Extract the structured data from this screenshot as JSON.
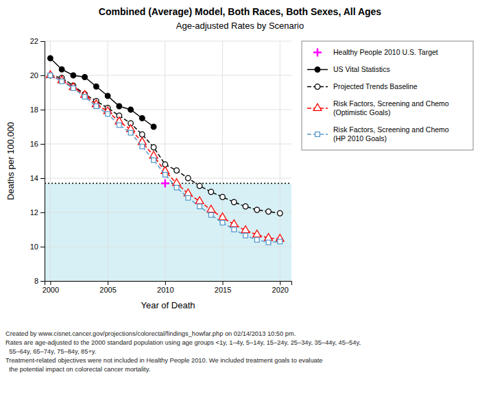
{
  "chart_data": {
    "type": "line",
    "title": "Combined (Average) Model, Both Races, Both Sexes, All Ages",
    "subtitle": "Age-adjusted Rates by Scenario",
    "x_label": "Year of Death",
    "y_label": "Deaths per 100,000",
    "xlim": [
      1999.5,
      2021
    ],
    "ylim": [
      8,
      22
    ],
    "xticks": [
      2000,
      2005,
      2010,
      2015,
      2020
    ],
    "yticks": [
      8,
      10,
      12,
      14,
      16,
      18,
      20,
      22
    ],
    "grid": true,
    "legend": "right",
    "series": [
      {
        "name": "Healthy People 2010 U.S. Target",
        "type": "target",
        "color": "#ff00ff",
        "marker": "plus",
        "line_style": "dotted",
        "x": [
          2010
        ],
        "values": [
          13.7
        ]
      },
      {
        "name": "US Vital Statistics",
        "type": "line",
        "color": "#000000",
        "marker": "circle",
        "line_style": "solid",
        "x": [
          2000,
          2001,
          2002,
          2003,
          2004,
          2005,
          2006,
          2007,
          2008,
          2009
        ],
        "values": [
          21.0,
          20.35,
          20.0,
          19.9,
          19.35,
          18.8,
          18.2,
          18.0,
          17.5,
          17.0
        ]
      },
      {
        "name": "Projected Trends Baseline",
        "type": "line",
        "color": "#000000",
        "marker": "circle-open",
        "line_style": "dashed",
        "x": [
          2000,
          2001,
          2002,
          2003,
          2004,
          2005,
          2006,
          2007,
          2008,
          2009,
          2010,
          2011,
          2012,
          2013,
          2014,
          2015,
          2016,
          2017,
          2018,
          2019,
          2020
        ],
        "values": [
          20.0,
          19.85,
          19.4,
          18.9,
          18.5,
          18.1,
          17.65,
          17.2,
          16.55,
          15.8,
          14.8,
          14.45,
          14.0,
          13.55,
          13.2,
          12.9,
          12.6,
          12.35,
          12.15,
          12.05,
          11.95
        ]
      },
      {
        "name": "Risk Factors, Screening and Chemo\n(Optimistic Goals)",
        "type": "line",
        "color": "#ff0000",
        "marker": "triangle-open",
        "line_style": "dashed",
        "x": [
          2000,
          2001,
          2002,
          2003,
          2004,
          2005,
          2006,
          2007,
          2008,
          2009,
          2010,
          2011,
          2012,
          2013,
          2014,
          2015,
          2016,
          2017,
          2018,
          2019,
          2020
        ],
        "values": [
          20.0,
          19.7,
          19.3,
          18.85,
          18.3,
          17.9,
          17.3,
          16.85,
          16.1,
          15.3,
          14.4,
          13.7,
          13.1,
          12.65,
          12.15,
          11.7,
          11.3,
          10.95,
          10.7,
          10.5,
          10.45
        ]
      },
      {
        "name": "Risk Factors, Screening and Chemo\n(HP 2010 Goals)",
        "type": "line",
        "color": "#5599cc",
        "marker": "square-open",
        "line_style": "dashed",
        "x": [
          2000,
          2001,
          2002,
          2003,
          2004,
          2005,
          2006,
          2007,
          2008,
          2009,
          2010,
          2011,
          2012,
          2013,
          2014,
          2015,
          2016,
          2017,
          2018,
          2019,
          2020
        ],
        "values": [
          20.0,
          19.65,
          19.25,
          18.75,
          18.2,
          17.75,
          17.1,
          16.65,
          15.85,
          15.05,
          14.2,
          13.45,
          12.85,
          12.35,
          11.85,
          11.4,
          11.0,
          10.65,
          10.4,
          10.25,
          10.3
        ]
      }
    ],
    "footnotes": [
      "Created by www.cisnet.cancer.gov/projections/colorectal/findings_howfar.php on 02/14/2013 10:50 pm.",
      "Rates are age-adjusted to the 2000 standard population using age groups <1y, 1–4y, 5–14y, 15–24y, 25–34y, 35–44y, 45–54y,",
      "  55–64y, 65–74y, 75–84y, 85+y.",
      "Treatment-related objectives were not included in Healthy People 2010. We included treatment goals to evaluate",
      "  the potential impact on colorectal cancer mortality."
    ]
  }
}
